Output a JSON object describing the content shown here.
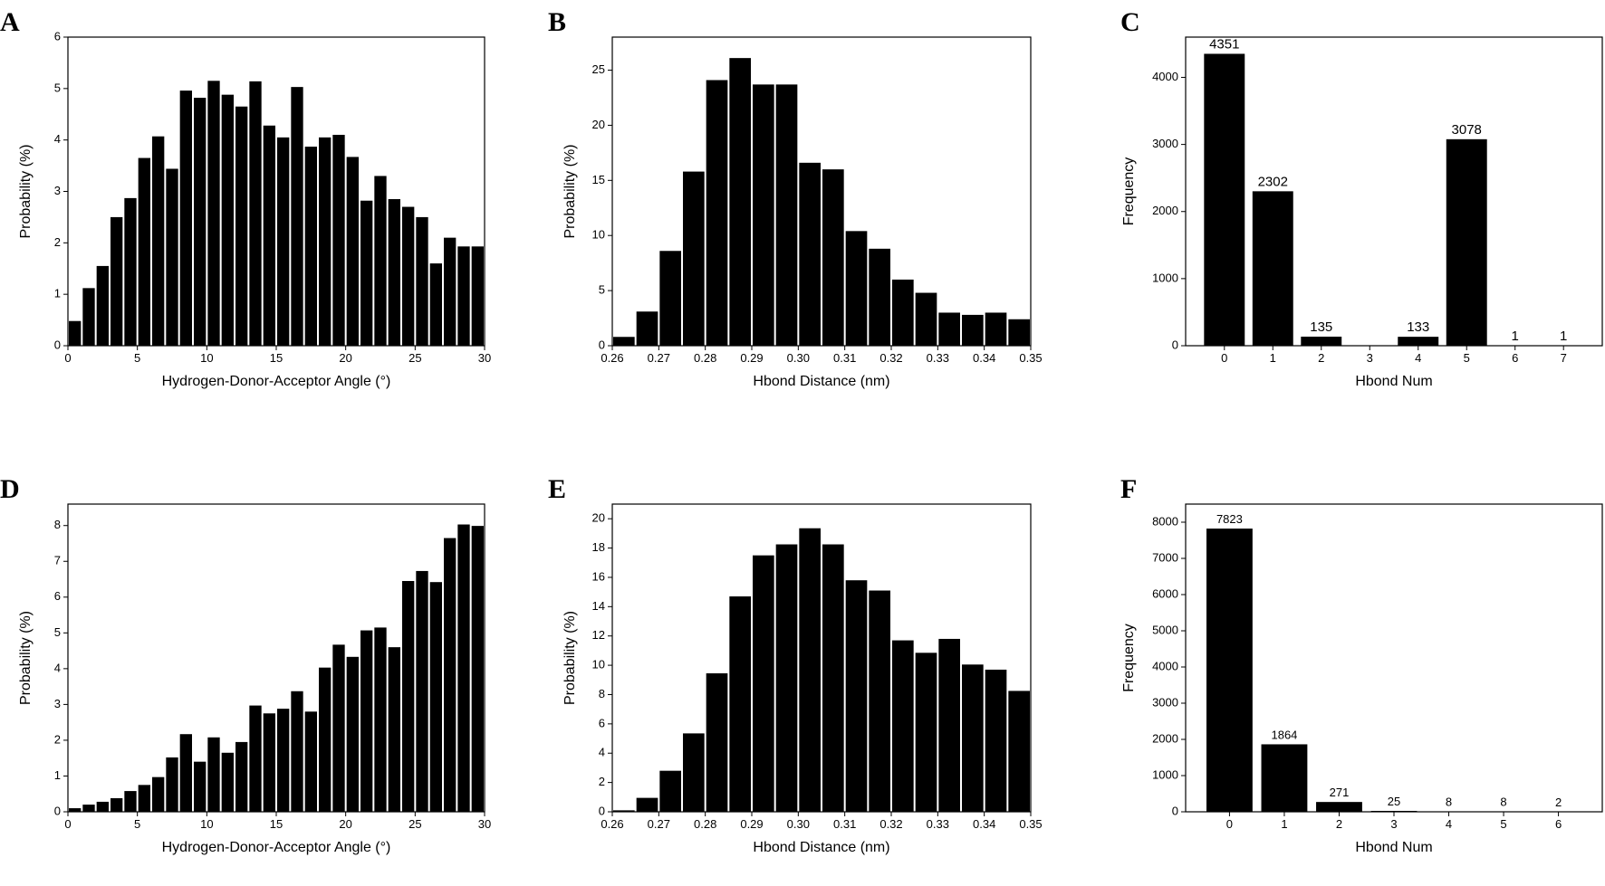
{
  "figure": {
    "background": "#ffffff",
    "bar_color": "#000000"
  },
  "chart_data": [
    {
      "panel": "A",
      "type": "bar",
      "xlabel": "Hydrogen-Donor-Acceptor Angle (°)",
      "ylabel": "Probability (%)",
      "xlim": [
        0,
        30
      ],
      "ylim": [
        0,
        6
      ],
      "xticks": [
        0,
        5,
        10,
        15,
        20,
        25,
        30
      ],
      "yticks": [
        0,
        1,
        2,
        3,
        4,
        5,
        6
      ],
      "bin_start": 0,
      "bin_width": 1,
      "values": [
        0.48,
        1.12,
        1.55,
        2.5,
        2.87,
        3.65,
        4.07,
        3.44,
        4.96,
        4.82,
        5.15,
        4.88,
        4.65,
        5.14,
        4.28,
        4.05,
        5.03,
        3.87,
        4.05,
        4.1,
        3.67,
        2.82,
        3.3,
        2.85,
        2.7,
        2.5,
        1.6,
        2.1,
        1.93,
        1.93
      ]
    },
    {
      "panel": "B",
      "type": "bar",
      "xlabel": "Hbond Distance (nm)",
      "ylabel": "Probability (%)",
      "xlim": [
        0.26,
        0.35
      ],
      "ylim": [
        0,
        28
      ],
      "xticks": [
        "0.26",
        "0.27",
        "0.28",
        "0.29",
        "0.30",
        "0.31",
        "0.32",
        "0.33",
        "0.34",
        "0.35"
      ],
      "yticks": [
        0,
        5,
        10,
        15,
        20,
        25
      ],
      "bin_start": 0.26,
      "bin_width": 0.005,
      "values": [
        0.8,
        3.1,
        8.6,
        15.8,
        24.1,
        26.1,
        23.7,
        23.7,
        16.6,
        16.0,
        10.4,
        8.8,
        6.0,
        4.8,
        3.0,
        2.8,
        3.0,
        2.4
      ]
    },
    {
      "panel": "C",
      "type": "bar",
      "xlabel": "Hbond Num",
      "ylabel": "Frequency",
      "ylim": [
        0,
        4600
      ],
      "yticks": [
        0,
        1000,
        2000,
        3000,
        4000
      ],
      "categories": [
        "0",
        "1",
        "2",
        "3",
        "4",
        "5",
        "6",
        "7"
      ],
      "values": [
        4351,
        2302,
        135,
        0,
        133,
        3078,
        1,
        1
      ],
      "data_labels": [
        "4351",
        "2302",
        "135",
        "",
        "133",
        "3078",
        "1",
        "1"
      ]
    },
    {
      "panel": "D",
      "type": "bar",
      "xlabel": "Hydrogen-Donor-Acceptor Angle (°)",
      "ylabel": "Probability (%)",
      "xlim": [
        0,
        30
      ],
      "ylim": [
        0,
        8.6
      ],
      "xticks": [
        0,
        5,
        10,
        15,
        20,
        25,
        30
      ],
      "yticks": [
        0,
        1,
        2,
        3,
        4,
        5,
        6,
        7,
        8
      ],
      "bin_start": 0,
      "bin_width": 1,
      "values": [
        0.1,
        0.2,
        0.28,
        0.38,
        0.58,
        0.75,
        0.97,
        1.52,
        2.17,
        1.4,
        2.08,
        1.65,
        1.95,
        2.97,
        2.75,
        2.88,
        3.37,
        2.8,
        4.03,
        4.67,
        4.33,
        5.07,
        5.15,
        4.6,
        6.45,
        6.73,
        6.42,
        7.65,
        8.03,
        7.99
      ]
    },
    {
      "panel": "E",
      "type": "bar",
      "xlabel": "Hbond Distance (nm)",
      "ylabel": "Probability (%)",
      "xlim": [
        0.26,
        0.35
      ],
      "ylim": [
        0,
        21
      ],
      "xticks": [
        "0.26",
        "0.27",
        "0.28",
        "0.29",
        "0.30",
        "0.31",
        "0.32",
        "0.33",
        "0.34",
        "0.35"
      ],
      "yticks": [
        0,
        2,
        4,
        6,
        8,
        10,
        12,
        14,
        16,
        18,
        20
      ],
      "bin_start": 0.26,
      "bin_width": 0.005,
      "values": [
        0.1,
        0.95,
        2.8,
        5.35,
        9.45,
        14.7,
        17.5,
        18.25,
        19.35,
        18.25,
        15.8,
        15.1,
        11.7,
        10.85,
        11.8,
        10.05,
        9.7,
        8.25
      ]
    },
    {
      "panel": "F",
      "type": "bar",
      "xlabel": "Hbond Num",
      "ylabel": "Frequency",
      "ylim": [
        0,
        8500
      ],
      "yticks": [
        0,
        1000,
        2000,
        3000,
        4000,
        5000,
        6000,
        7000,
        8000
      ],
      "categories": [
        "0",
        "1",
        "2",
        "3",
        "4",
        "5",
        "6"
      ],
      "values": [
        7823,
        1864,
        271,
        25,
        8,
        8,
        2
      ],
      "data_labels": [
        "7823",
        "1864",
        "271",
        "25",
        "8",
        "8",
        "2"
      ]
    }
  ]
}
